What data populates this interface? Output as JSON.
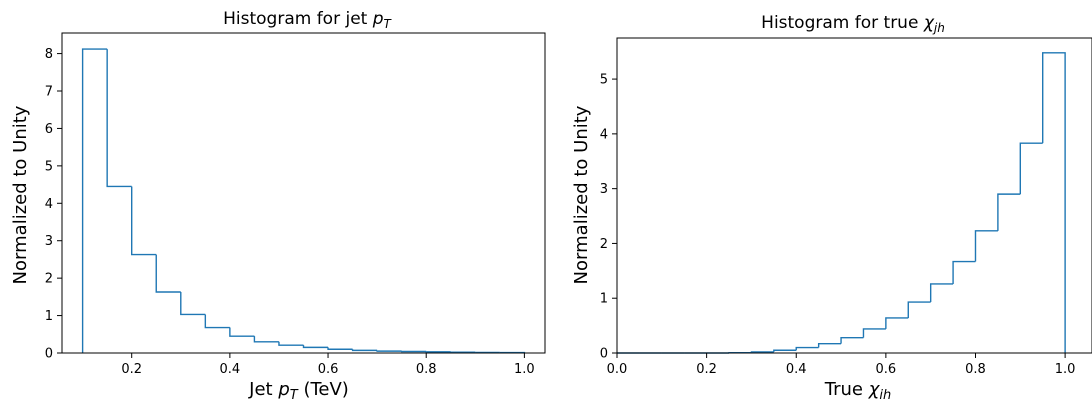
{
  "chart_data": [
    {
      "type": "histogram",
      "title": {
        "prefix": "Histogram for jet ",
        "symbol": "p",
        "sub": "T",
        "suffix": ""
      },
      "xlabel": {
        "prefix": "Jet ",
        "symbol": "p",
        "sub": "T",
        "suffix": " (TeV)"
      },
      "ylabel": "Normalized to Unity",
      "xlim": [
        0.058,
        1.042
      ],
      "ylim": [
        0,
        8.55
      ],
      "xticks": [
        0.2,
        0.4,
        0.6,
        0.8,
        1.0
      ],
      "xtick_labels": [
        "0.2",
        "0.4",
        "0.6",
        "0.8",
        "1.0"
      ],
      "yticks": [
        0,
        1,
        2,
        3,
        4,
        5,
        6,
        7,
        8
      ],
      "ytick_labels": [
        "0",
        "1",
        "2",
        "3",
        "4",
        "5",
        "6",
        "7",
        "8"
      ],
      "bin_edges": [
        0.1,
        0.15,
        0.2,
        0.25,
        0.3,
        0.35,
        0.4,
        0.45,
        0.5,
        0.55,
        0.6,
        0.65,
        0.7,
        0.75,
        0.8,
        0.85,
        0.9,
        0.95,
        1.0
      ],
      "values": [
        8.12,
        4.45,
        2.63,
        1.63,
        1.03,
        0.68,
        0.45,
        0.3,
        0.21,
        0.15,
        0.1,
        0.07,
        0.05,
        0.04,
        0.03,
        0.02,
        0.015,
        0.01
      ],
      "histtype": "step",
      "color": "#1f77b4",
      "grid": false
    },
    {
      "type": "histogram",
      "title": {
        "prefix": "Histogram for true ",
        "symbol": "χ",
        "sub": "jh",
        "suffix": ""
      },
      "xlabel": {
        "prefix": "True ",
        "symbol": "χ",
        "sub": "ih",
        "suffix": ""
      },
      "ylabel": "Normalized to Unity",
      "xlim": [
        0.0,
        1.06
      ],
      "ylim": [
        0,
        5.75
      ],
      "xticks": [
        0.0,
        0.2,
        0.4,
        0.6,
        0.8,
        1.0
      ],
      "xtick_labels": [
        "0.0",
        "0.2",
        "0.4",
        "0.6",
        "0.8",
        "1.0"
      ],
      "yticks": [
        0,
        1,
        2,
        3,
        4,
        5
      ],
      "ytick_labels": [
        "0",
        "1",
        "2",
        "3",
        "4",
        "5"
      ],
      "bin_edges": [
        0.0,
        0.05,
        0.1,
        0.15,
        0.2,
        0.25,
        0.3,
        0.35,
        0.4,
        0.45,
        0.5,
        0.55,
        0.6,
        0.65,
        0.7,
        0.75,
        0.8,
        0.85,
        0.9,
        0.95,
        1.0
      ],
      "values": [
        0.0,
        0.0,
        0.0,
        0.0,
        0.0,
        0.005,
        0.02,
        0.05,
        0.1,
        0.17,
        0.28,
        0.44,
        0.64,
        0.93,
        1.26,
        1.67,
        2.23,
        2.9,
        3.83,
        5.48
      ],
      "histtype": "step",
      "color": "#1f77b4",
      "grid": false
    }
  ]
}
